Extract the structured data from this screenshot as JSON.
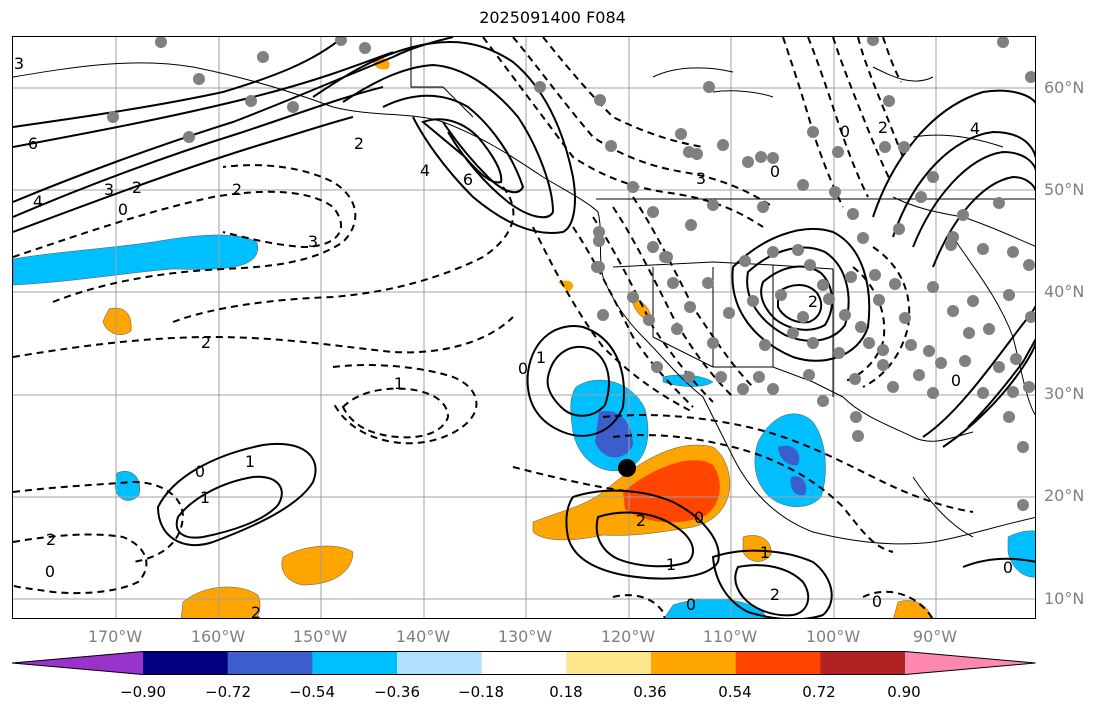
{
  "title": "2025091400 F084",
  "lat_labels": [
    "60°N",
    "50°N",
    "40°N",
    "30°N",
    "20°N",
    "10°N"
  ],
  "lon_labels": [
    "170°W",
    "160°W",
    "150°W",
    "140°W",
    "130°W",
    "120°W",
    "110°W",
    "100°W",
    "90°W"
  ],
  "colorbar": {
    "ticks": [
      "−0.90",
      "−0.72",
      "−0.54",
      "−0.36",
      "−0.18",
      "0.18",
      "0.36",
      "0.54",
      "0.72",
      "0.90"
    ],
    "colors": [
      "#9933cc",
      "#000080",
      "#3a5fcd",
      "#00bfff",
      "#b0e0ff",
      "#ffffff",
      "#ffe68a",
      "#ffa500",
      "#ff4500",
      "#b22222",
      "#ff88b0"
    ]
  },
  "contour_labels": [
    "3",
    "6",
    "4",
    "3",
    "2",
    "0",
    "2",
    "4",
    "6",
    "2",
    "3",
    "2",
    "1",
    "0",
    "1",
    "0",
    "1",
    "1",
    "0",
    "2",
    "1",
    "2",
    "1",
    "0",
    "2",
    "0",
    "0",
    "2",
    "2",
    "0",
    "3",
    "4",
    "2",
    "0",
    "0",
    "0"
  ]
}
